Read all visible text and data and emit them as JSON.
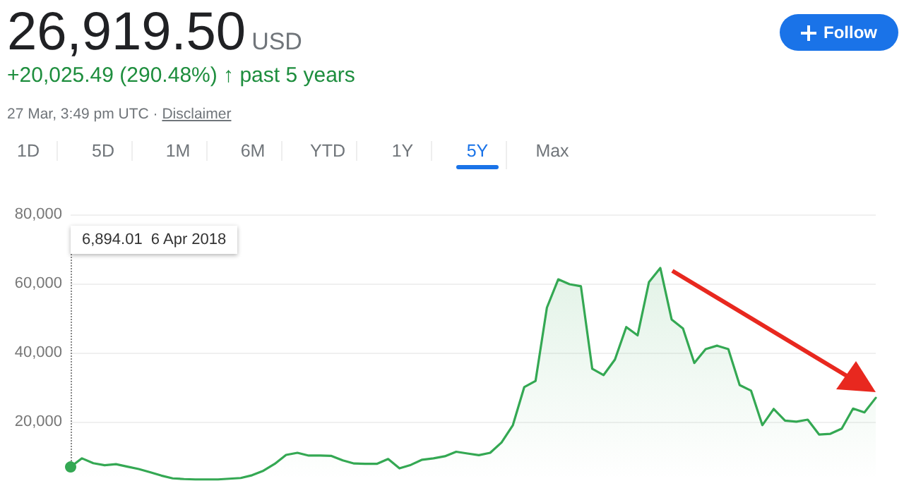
{
  "chart_data": {
    "type": "area",
    "title": "26,919.50",
    "subtitle": "+20,025.49 (290.48%) ↑ past 5 years",
    "annotations": [
      "USD",
      "27 Mar, 3:49 pm UTC ·",
      "Disclaimer",
      "Follow",
      "1D",
      "5D",
      "1M",
      "6M",
      "YTD",
      "1Y",
      "5Y",
      "Max",
      "6,894.01  6 Apr 2018"
    ],
    "categories": [
      null,
      null,
      null,
      null,
      null,
      null,
      null,
      null,
      null,
      null,
      null,
      null,
      null,
      null,
      null,
      null,
      null,
      null,
      null,
      null,
      null,
      null,
      null,
      null,
      null,
      null,
      null,
      null,
      null,
      null,
      null,
      null,
      null,
      null,
      null,
      null,
      null,
      null,
      null,
      null,
      null,
      null,
      null,
      null,
      null,
      null,
      null,
      null,
      null,
      null,
      null,
      null,
      null,
      null,
      null,
      null,
      null,
      null,
      null,
      null,
      null,
      null,
      null,
      null,
      null,
      null,
      null,
      null,
      null,
      null,
      null,
      null
    ],
    "series": [
      {
        "color": "#34a853",
        "values": [
          6900,
          9400,
          8000,
          7400,
          7700,
          7000,
          6300,
          5400,
          4400,
          3600,
          3400,
          3300,
          3300,
          3300,
          3500,
          3700,
          4500,
          5800,
          7800,
          10400,
          11000,
          10200,
          10200,
          10100,
          8800,
          7900,
          7800,
          7800,
          9200,
          6500,
          7500,
          9000,
          9400,
          10000,
          11300,
          10800,
          10300,
          11000,
          14000,
          19000,
          30000,
          31800,
          53000,
          61200,
          59800,
          59200,
          35300,
          33500,
          38000,
          47400,
          45000,
          60400,
          64500,
          49600,
          47000,
          37000,
          41000,
          42000,
          41000,
          30600,
          29000,
          19000,
          23700,
          20300,
          20000,
          20600,
          16300,
          16500,
          18000,
          23800,
          22700,
          26900
        ]
      }
    ],
    "ylim": [
      3000,
      80000
    ],
    "yticks": [
      {
        "value": 20000,
        "label": "20,000"
      },
      {
        "value": 40000,
        "label": "40,000"
      },
      {
        "value": 60000,
        "label": "60,000"
      },
      {
        "value": 80000,
        "label": "80,000"
      }
    ],
    "grid": "y",
    "tick_labels": "y",
    "line_style": "solid"
  }
}
